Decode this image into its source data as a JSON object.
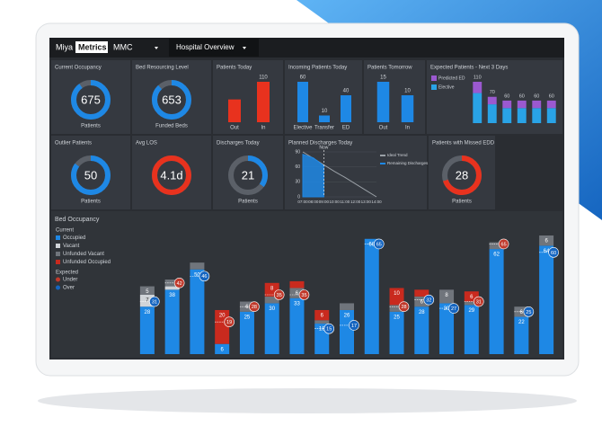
{
  "header": {
    "brand": "Miya",
    "brand_highlight": "Metrics",
    "site": "MMC",
    "menu": "Hospital Overview"
  },
  "panels": [
    {
      "title": "Current Occupancy",
      "type": "donut",
      "value": 675,
      "label": "Patients",
      "fill": 90,
      "color": "#1e88e5"
    },
    {
      "title": "Bed Resourcing Level",
      "type": "donut",
      "value": 653,
      "label": "Funded Beds",
      "fill": 88,
      "color": "#1e88e5"
    },
    {
      "title": "Patients Today",
      "type": "bar",
      "categories": [
        "Out",
        "In"
      ],
      "values": [
        62,
        110
      ],
      "value_labels": [
        null,
        "110"
      ],
      "color": "#e8321e"
    },
    {
      "title": "Incoming Patients Today",
      "type": "bar",
      "categories": [
        "Elective",
        "Transfer",
        "ED"
      ],
      "values": [
        60,
        10,
        40
      ],
      "color": "#1e88e5"
    },
    {
      "title": "Patients Tomorrow",
      "type": "bar",
      "categories": [
        "Out",
        "In"
      ],
      "values": [
        15,
        10
      ],
      "color": "#1e88e5"
    },
    {
      "title": "Expected Patients - Next 3 Days",
      "type": "stacked_bar",
      "categories": [
        null,
        null,
        null,
        null,
        null,
        null
      ],
      "series": [
        {
          "name": "Predicted ED",
          "color": "#9b59d0",
          "values": [
            30,
            20,
            20,
            20,
            20,
            20
          ]
        },
        {
          "name": "Elective",
          "color": "#29a3e6",
          "values": [
            80,
            50,
            40,
            40,
            40,
            40
          ]
        }
      ],
      "total_labels": [
        "110",
        "70",
        "60",
        "60",
        "60",
        "60"
      ]
    },
    {
      "title": "Outlier Patients",
      "type": "donut",
      "value": 50,
      "label": "Patients",
      "fill": 85,
      "color": "#1e88e5"
    },
    {
      "title": "Avg LOS",
      "type": "donut",
      "value": "4.1d",
      "fill": 100,
      "color": "#e8321e"
    },
    {
      "title": "Discharges Today",
      "type": "donut",
      "value": 21,
      "label": "Patients",
      "fill": 35,
      "color": "#1e88e5"
    },
    {
      "title": "Planned Discharges Today",
      "type": "line",
      "x": [
        "07:00",
        "08:00",
        "09:00",
        "10:00",
        "11:00",
        "12:00",
        "13:00",
        "14:00"
      ],
      "series": [
        {
          "name": "Ideal Trend",
          "color": "#9aa0a6",
          "values": [
            90,
            77,
            64,
            51,
            39,
            26,
            13,
            0
          ]
        },
        {
          "name": "Remaining Discharges",
          "color": "#1e88e5",
          "area": true,
          "values": [
            85,
            78,
            62,
            null,
            null,
            null,
            null,
            null
          ]
        }
      ],
      "ylim": [
        0,
        90
      ],
      "yticks": [
        0,
        30,
        60,
        90
      ],
      "annotation": "Now"
    },
    {
      "title": "Patients with Missed EDD",
      "type": "donut",
      "value": 28,
      "label": "Patients",
      "fill": 70,
      "color": "#e8321e"
    }
  ],
  "bed_occupancy": {
    "title": "Bed Occupancy",
    "current_heading": "Current",
    "expected_heading": "Expected",
    "series": [
      {
        "name": "Occupied",
        "color": "#1e88e5",
        "values": [
          28,
          38,
          50,
          6,
          25,
          30,
          33,
          18,
          26,
          68,
          25,
          28,
          30,
          29,
          62,
          22,
          64
        ]
      },
      {
        "name": "Vacant",
        "color": "#d0d4d8",
        "values": [
          7,
          2,
          null,
          null,
          null,
          null,
          null,
          null,
          null,
          null,
          null,
          null,
          null,
          null,
          null,
          null,
          null
        ]
      },
      {
        "name": "Unfunded Vacant",
        "color": "#70757c",
        "values": [
          5,
          4,
          4,
          null,
          6,
          4,
          6,
          2,
          4,
          null,
          4,
          6,
          8,
          2,
          4,
          6,
          6
        ]
      },
      {
        "name": "Unfunded Occupied",
        "color": "#c92a1e",
        "values": [
          null,
          null,
          null,
          20,
          null,
          8,
          4,
          6,
          null,
          null,
          10,
          4,
          null,
          6,
          null,
          null,
          null
        ]
      }
    ],
    "expected": [
      {
        "name": "Under",
        "color": "#c0392b",
        "values": [
          null,
          42,
          null,
          19,
          28,
          35,
          35,
          null,
          null,
          null,
          28,
          null,
          null,
          31,
          65,
          null,
          null
        ]
      },
      {
        "name": "Over",
        "color": "#1565c0",
        "values": [
          31,
          null,
          46,
          null,
          null,
          null,
          null,
          15,
          17,
          65,
          null,
          32,
          27,
          null,
          null,
          25,
          60
        ]
      }
    ]
  }
}
